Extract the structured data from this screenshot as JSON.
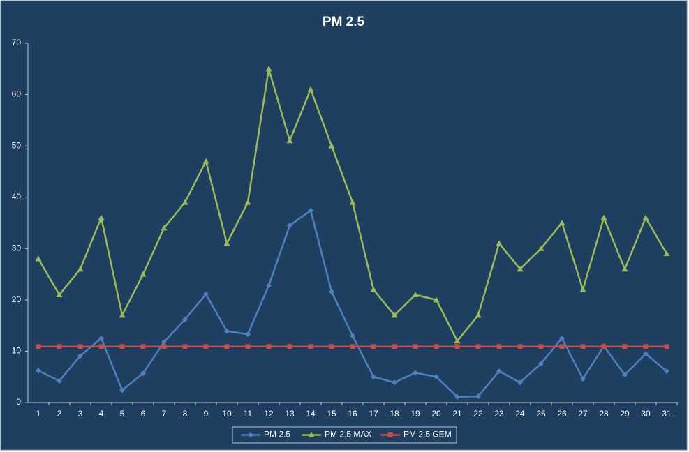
{
  "chart_data": {
    "type": "line",
    "title": "PM 2.5",
    "categories": [
      "1",
      "2",
      "3",
      "4",
      "5",
      "6",
      "7",
      "8",
      "9",
      "10",
      "11",
      "12",
      "13",
      "14",
      "15",
      "16",
      "17",
      "18",
      "19",
      "20",
      "21",
      "22",
      "23",
      "24",
      "25",
      "26",
      "27",
      "28",
      "29",
      "30",
      "31"
    ],
    "series": [
      {
        "name": "PM 2.5",
        "color": "#4f81bd",
        "marker": "diamond",
        "values": [
          6.2,
          4.2,
          9.1,
          12.5,
          2.4,
          5.7,
          11.8,
          16.2,
          21.1,
          13.9,
          13.3,
          22.8,
          34.5,
          37.4,
          21.6,
          13.0,
          5.0,
          3.9,
          5.8,
          5.0,
          1.1,
          1.2,
          6.1,
          3.9,
          7.6,
          12.5,
          4.6,
          11.0,
          5.4,
          9.5,
          6.1
        ]
      },
      {
        "name": "PM 2.5 MAX",
        "color": "#9bbb59",
        "marker": "triangle",
        "values": [
          28,
          21,
          26,
          36,
          17,
          25,
          34,
          39,
          47,
          31,
          39,
          65,
          51,
          61,
          50,
          39,
          22,
          17,
          21,
          20,
          12,
          17,
          31,
          26,
          30,
          35,
          22,
          36,
          26,
          36,
          29
        ]
      },
      {
        "name": "PM 2.5 GEM",
        "color": "#c0504d",
        "marker": "square",
        "values": [
          10.9,
          10.9,
          10.9,
          10.9,
          10.9,
          10.9,
          10.9,
          10.9,
          10.9,
          10.9,
          10.9,
          10.9,
          10.9,
          10.9,
          10.9,
          10.9,
          10.9,
          10.9,
          10.9,
          10.9,
          10.9,
          10.9,
          10.9,
          10.9,
          10.9,
          10.9,
          10.9,
          10.9,
          10.9,
          10.9,
          10.9
        ]
      }
    ],
    "ylim": [
      0,
      70
    ],
    "yticks": [
      0,
      10,
      20,
      30,
      40,
      50,
      60,
      70
    ],
    "grid": false,
    "legend": "bottom"
  }
}
